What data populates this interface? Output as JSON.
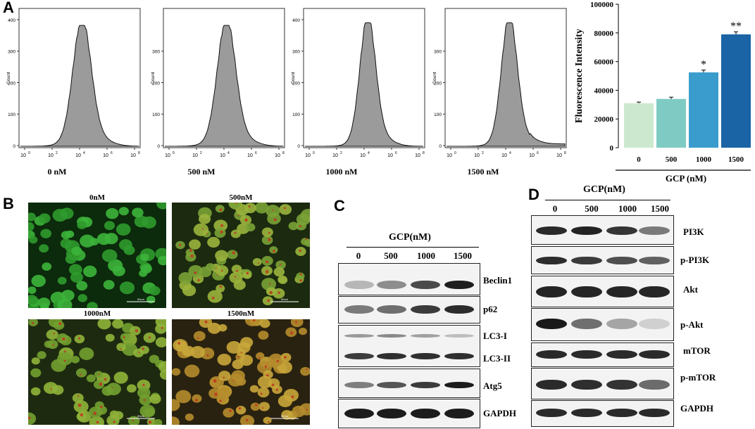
{
  "panels": {
    "A": "A",
    "B": "B",
    "C": "C",
    "D": "D"
  },
  "panelA": {
    "histograms": [
      {
        "label": "0 nM",
        "yticks": [
          "0",
          "100",
          "200",
          "300",
          "400"
        ]
      },
      {
        "label": "500 nM",
        "yticks": [
          "0",
          "100",
          "200",
          "300"
        ]
      },
      {
        "label": "1000 nM",
        "yticks": [
          "0",
          "100",
          "200",
          "300",
          "400"
        ]
      },
      {
        "label": "1500 nM",
        "yticks": [
          "0",
          "100",
          "200",
          "300"
        ]
      }
    ],
    "hist_ylabel": "Count",
    "hist_xticks": [
      "10",
      "10",
      "10",
      "10",
      "10",
      "10",
      "10"
    ],
    "hist_xexps": [
      "0",
      "2",
      "4",
      "6",
      "8"
    ],
    "hist_xexps_1500": [
      "0",
      "2",
      "4",
      "6",
      "8"
    ]
  },
  "chart_data": {
    "type": "bar",
    "categories": [
      "0",
      "500",
      "1000",
      "1500"
    ],
    "values": [
      31000,
      34000,
      52500,
      79000
    ],
    "errors": [
      800,
      1200,
      1600,
      1800
    ],
    "significance": [
      "",
      "",
      "*",
      "**"
    ],
    "colors": [
      "#cce9cf",
      "#7fcbc4",
      "#3a9ccd",
      "#1a64a6"
    ],
    "ylabel": "Fluorescence Intensity",
    "xlabel": "GCP (nM)",
    "ylim": [
      0,
      100000
    ],
    "yticks": [
      "0",
      "20000",
      "40000",
      "60000",
      "80000",
      "100000"
    ]
  },
  "panelB": {
    "titles": [
      "0nM",
      "500nM",
      "1000nM",
      "1500nM"
    ],
    "scalebar": "50um"
  },
  "panelC": {
    "header": "GCP(nM)",
    "lanes": [
      "0",
      "500",
      "1000",
      "1500"
    ],
    "rows": [
      "Beclin1",
      "p62",
      "LC3-I",
      "LC3-II",
      "Atg5",
      "GAPDH"
    ]
  },
  "panelD": {
    "header": "GCP(nM)",
    "lanes": [
      "0",
      "500",
      "1000",
      "1500"
    ],
    "rows": [
      "PI3K",
      "p-PI3K",
      "Akt",
      "p-Akt",
      "mTOR",
      "p-mTOR",
      "GAPDH"
    ]
  }
}
